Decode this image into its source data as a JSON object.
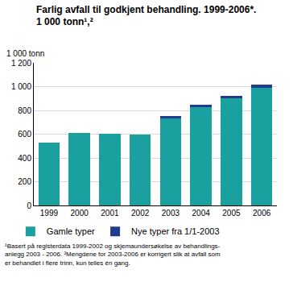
{
  "chart_data": {
    "type": "bar",
    "title": "Farlig avfall til godkjent behandling. 1999-2006*.",
    "subtitle": "1 000 tonn¹,²",
    "ylabel": "1 000 tonn",
    "categories": [
      "1999",
      "2000",
      "2001",
      "2002",
      "2003",
      "2004",
      "2005",
      "2006"
    ],
    "series": [
      {
        "name": "Gamle typer",
        "color": "#1aa09e",
        "values": [
          530,
          610,
          605,
          600,
          735,
          830,
          900,
          990
        ]
      },
      {
        "name": "Nye typer fra 1/1-2003",
        "color": "#1f3c8f",
        "values": [
          null,
          null,
          null,
          null,
          15,
          15,
          25,
          25
        ]
      }
    ],
    "stacked": true,
    "ylim": [
      0,
      1200
    ],
    "yticks": [
      0,
      200,
      400,
      600,
      800,
      {
        "value": 1000,
        "label": "1 000"
      },
      {
        "value": 1200,
        "label": "1 200"
      }
    ],
    "grid": true,
    "legend": "bottom",
    "annotations": [
      "¹Basert på registerdata 1999-2002 og skjemaundersøkelse av behandlings-",
      "anlegg 2003 - 2006. ²Mengdene for 2003-2006 er korrigert slik at avfall som",
      "er behandlet i flere trinn, kun telles én gang."
    ]
  }
}
